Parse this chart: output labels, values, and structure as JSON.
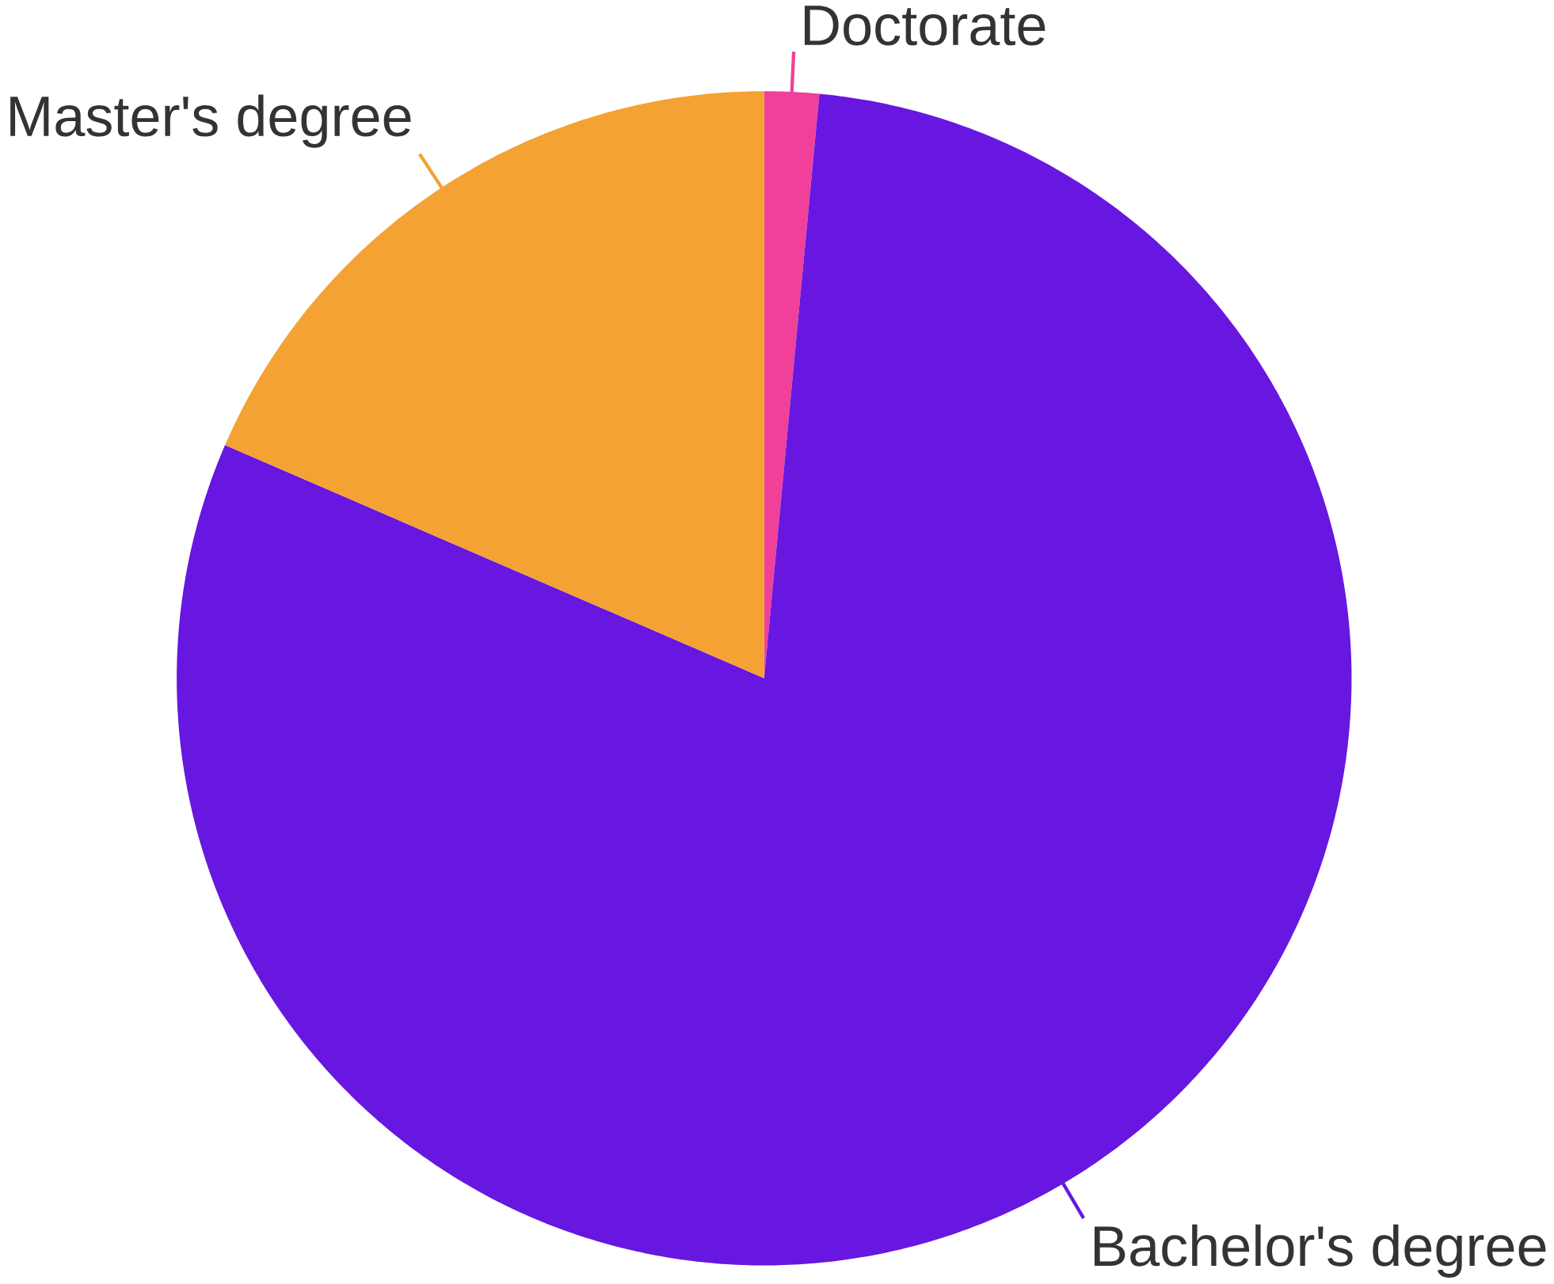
{
  "chart_data": {
    "type": "pie",
    "categories": [
      "Doctorate",
      "Bachelor's degree",
      "Master's degree"
    ],
    "values": [
      1.5,
      80,
      18.5
    ],
    "colors": [
      "#f0409a",
      "#6717e0",
      "#f4a233"
    ]
  }
}
